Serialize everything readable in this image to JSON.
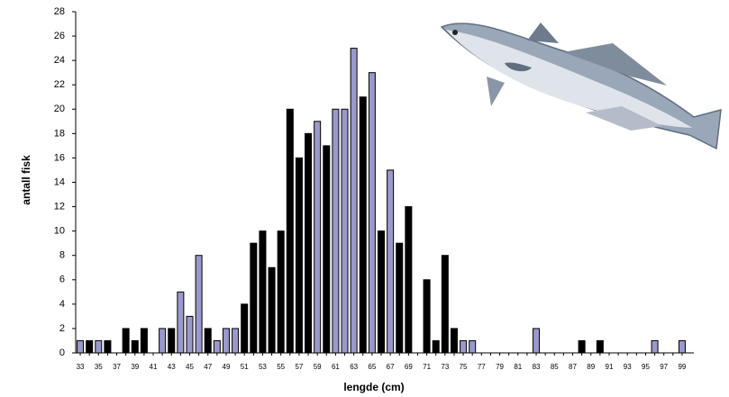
{
  "chart_data": {
    "type": "bar",
    "x_label": "lengde (cm)",
    "y_label": "antall fisk",
    "categories": [
      "33",
      null,
      "35",
      null,
      "37",
      null,
      "39",
      null,
      "41",
      null,
      "43",
      null,
      "45",
      null,
      "47",
      null,
      "49",
      null,
      "51",
      null,
      "53",
      null,
      "55",
      null,
      "57",
      null,
      "59",
      null,
      "61",
      null,
      "63",
      null,
      "65",
      null,
      "67",
      null,
      "69",
      null,
      "71",
      null,
      "73",
      null,
      "75",
      null,
      "77",
      null,
      "79",
      null,
      "81",
      null,
      "83",
      null,
      "85",
      null,
      "87",
      null,
      "89",
      null,
      "91",
      null,
      "93",
      null,
      "95",
      null,
      "97",
      null,
      "99"
    ],
    "values": [
      1,
      1,
      1,
      1,
      0,
      2,
      1,
      2,
      0,
      2,
      2,
      5,
      3,
      8,
      2,
      1,
      2,
      2,
      4,
      9,
      10,
      7,
      10,
      20,
      16,
      18,
      19,
      17,
      20,
      20,
      25,
      21,
      23,
      10,
      15,
      9,
      12,
      0,
      6,
      1,
      8,
      2,
      1,
      1,
      0,
      0,
      0,
      0,
      0,
      0,
      2,
      0,
      0,
      0,
      0,
      1,
      0,
      1,
      0,
      0,
      0,
      0,
      0,
      1,
      0,
      0,
      1
    ],
    "colors": [
      "#9999cc",
      "#000000",
      "#9999cc",
      "#000000",
      "#000000",
      "#000000",
      "#000000",
      "#000000",
      "#000000",
      "#9999cc",
      "#000000",
      "#9999cc",
      "#9999cc",
      "#9999cc",
      "#000000",
      "#9999cc",
      "#9999cc",
      "#9999cc",
      "#000000",
      "#000000",
      "#000000",
      "#000000",
      "#000000",
      "#000000",
      "#000000",
      "#000000",
      "#9999cc",
      "#000000",
      "#9999cc",
      "#9999cc",
      "#9999cc",
      "#000000",
      "#9999cc",
      "#000000",
      "#9999cc",
      "#000000",
      "#000000",
      "#000000",
      "#000000",
      "#000000",
      "#000000",
      "#000000",
      "#9999cc",
      "#9999cc",
      "#000000",
      "#000000",
      "#000000",
      "#000000",
      "#000000",
      "#000000",
      "#9999cc",
      "#000000",
      "#000000",
      "#000000",
      "#000000",
      "#000000",
      "#000000",
      "#000000",
      "#000000",
      "#000000",
      "#000000",
      "#000000",
      "#000000",
      "#9999cc",
      "#000000",
      "#000000",
      "#9999cc"
    ],
    "ylim": [
      0,
      28
    ],
    "yticks": [
      0,
      2,
      4,
      6,
      8,
      10,
      12,
      14,
      16,
      18,
      20,
      22,
      24,
      26,
      28
    ]
  }
}
